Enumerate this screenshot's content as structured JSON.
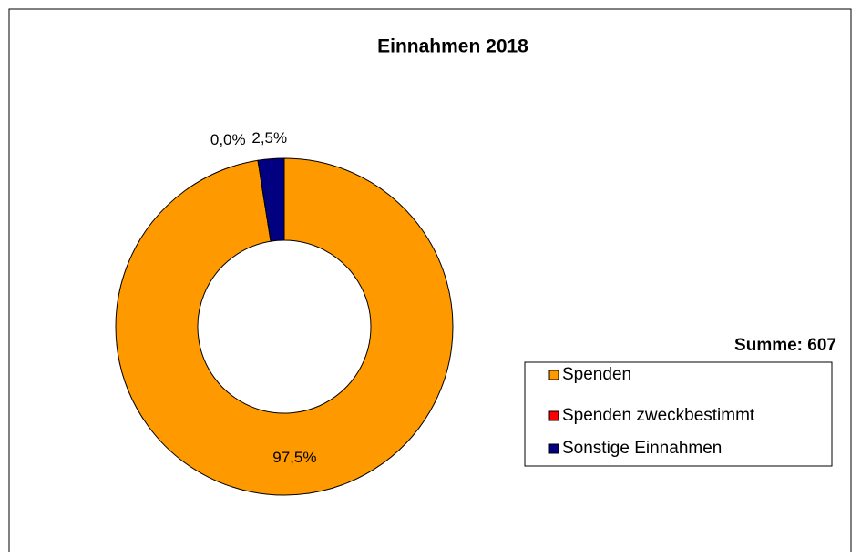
{
  "chart_data": {
    "type": "donut",
    "title": "Einnahmen 2018",
    "categories": [
      "Spenden",
      "Spenden zweckbestimmt",
      "Sonstige Einnahmen"
    ],
    "values": [
      97.5,
      0.0,
      2.5
    ],
    "value_labels": [
      "97,5%",
      "0,0%",
      "2,5%"
    ],
    "colors": [
      "#ff9900",
      "#ff0000",
      "#000080"
    ],
    "annotation": "Summe: 607",
    "legend": "right"
  }
}
